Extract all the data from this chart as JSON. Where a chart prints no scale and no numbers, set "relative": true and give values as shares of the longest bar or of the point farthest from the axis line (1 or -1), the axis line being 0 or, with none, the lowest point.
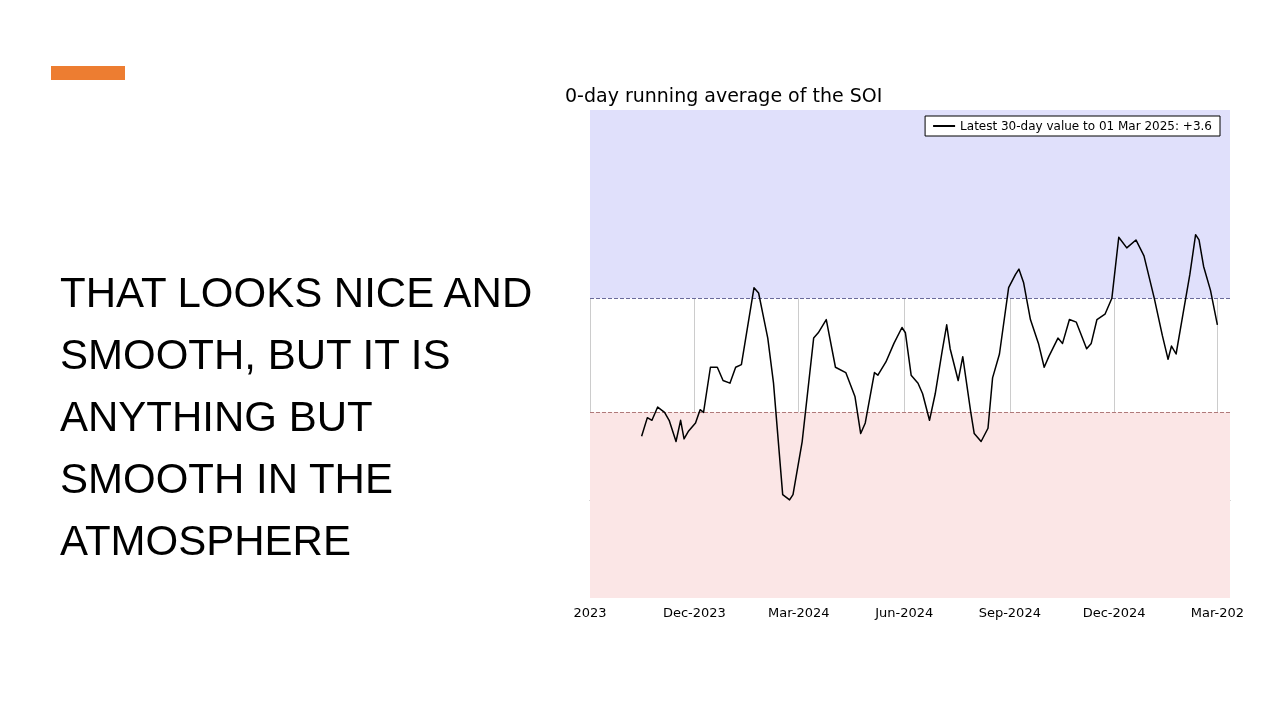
{
  "chart_data": {
    "type": "line",
    "title": "0-day running average of the SOI",
    "relative": true,
    "annotations": [
      "THAT LOOKS NICE AND SMOOTH, BUT IT IS ANYTHING BUT SMOOTH IN THE ATMOSPHERE"
    ],
    "x": [
      "2023-10-16",
      "2023-10-21",
      "2023-10-25",
      "2023-10-30",
      "2023-11-05",
      "2023-11-09",
      "2023-11-15",
      "2023-11-19",
      "2023-11-22",
      "2023-11-26",
      "2023-12-02",
      "2023-12-06",
      "2023-12-09",
      "2023-12-15",
      "2023-12-21",
      "2023-12-26",
      "2024-01-01",
      "2024-01-06",
      "2024-01-11",
      "2024-01-22",
      "2024-01-26",
      "2024-02-03",
      "2024-02-08",
      "2024-02-16",
      "2024-02-22",
      "2024-02-25",
      "2024-03-04",
      "2024-03-14",
      "2024-03-18",
      "2024-03-25",
      "2024-04-02",
      "2024-04-11",
      "2024-04-19",
      "2024-04-24",
      "2024-04-28",
      "2024-05-06",
      "2024-05-09",
      "2024-05-16",
      "2024-05-23",
      "2024-05-30",
      "2024-06-02",
      "2024-06-07",
      "2024-06-13",
      "2024-06-17",
      "2024-06-23",
      "2024-06-28",
      "2024-07-04",
      "2024-07-08",
      "2024-07-11",
      "2024-07-18",
      "2024-07-22",
      "2024-07-29",
      "2024-08-01",
      "2024-08-07",
      "2024-08-13",
      "2024-08-17",
      "2024-08-23",
      "2024-08-31",
      "2024-09-06",
      "2024-09-09",
      "2024-09-13",
      "2024-09-19",
      "2024-09-26",
      "2024-10-01",
      "2024-10-05",
      "2024-10-13",
      "2024-10-17",
      "2024-10-23",
      "2024-10-29",
      "2024-11-07",
      "2024-11-11",
      "2024-11-16",
      "2024-11-23",
      "2024-11-29",
      "2024-12-05",
      "2024-12-12",
      "2024-12-20",
      "2024-12-27",
      "2025-01-05",
      "2025-01-12",
      "2025-01-17",
      "2025-01-20",
      "2025-01-24",
      "2025-01-30",
      "2025-02-05",
      "2025-02-10",
      "2025-02-13",
      "2025-02-17",
      "2025-02-23",
      "2025-03-01"
    ],
    "series": [
      {
        "name": "Latest 30-day value to 01 Mar 2025: +3.6",
        "color": "#000000",
        "values": [
          0.24,
          0.31,
          0.3,
          0.35,
          0.33,
          0.3,
          0.22,
          0.3,
          0.23,
          0.26,
          0.29,
          0.34,
          0.33,
          0.5,
          0.5,
          0.45,
          0.44,
          0.5,
          0.51,
          0.8,
          0.78,
          0.61,
          0.44,
          0.02,
          0,
          0.02,
          0.22,
          0.61,
          0.63,
          0.68,
          0.5,
          0.48,
          0.39,
          0.25,
          0.29,
          0.48,
          0.47,
          0.52,
          0.59,
          0.65,
          0.63,
          0.47,
          0.44,
          0.4,
          0.3,
          0.4,
          0.56,
          0.66,
          0.57,
          0.45,
          0.54,
          0.33,
          0.25,
          0.22,
          0.27,
          0.46,
          0.55,
          0.8,
          0.85,
          0.87,
          0.82,
          0.68,
          0.59,
          0.5,
          0.54,
          0.61,
          0.59,
          0.68,
          0.67,
          0.57,
          0.59,
          0.68,
          0.7,
          0.76,
          0.99,
          0.95,
          0.98,
          0.92,
          0.76,
          0.62,
          0.53,
          0.58,
          0.55,
          0.7,
          0.85,
          1,
          0.98,
          0.88,
          0.79,
          0.66
        ]
      }
    ],
    "xlim": [
      "2023-09-01",
      "2025-03-12"
    ],
    "xticks": [
      {
        "value": "2023-09-01",
        "label": "2023"
      },
      {
        "value": "2023-12-01",
        "label": "Dec-2023"
      },
      {
        "value": "2024-03-01",
        "label": "Mar-2024"
      },
      {
        "value": "2024-06-01",
        "label": "Jun-2024"
      },
      {
        "value": "2024-09-01",
        "label": "Sep-2024"
      },
      {
        "value": "2024-12-01",
        "label": "Dec-2024"
      },
      {
        "value": "2025-03-01",
        "label": "Mar-202"
      }
    ],
    "bands": [
      {
        "axis": "y",
        "from": 0.76,
        "to": 1.47,
        "color": "#e0e0fb"
      },
      {
        "axis": "y",
        "from": -0.37,
        "to": 0.33,
        "color": "#fbe6e6"
      }
    ],
    "ref_lines": [
      {
        "axis": "y",
        "value": 0.76,
        "color": "#6a6a9a",
        "line_style": "dashed"
      },
      {
        "axis": "y",
        "value": 0.33,
        "color": "#b07a7a",
        "line_style": "dashed"
      }
    ],
    "grid": "x",
    "legend": "top right",
    "marker": "none",
    "line_style": "solid"
  }
}
